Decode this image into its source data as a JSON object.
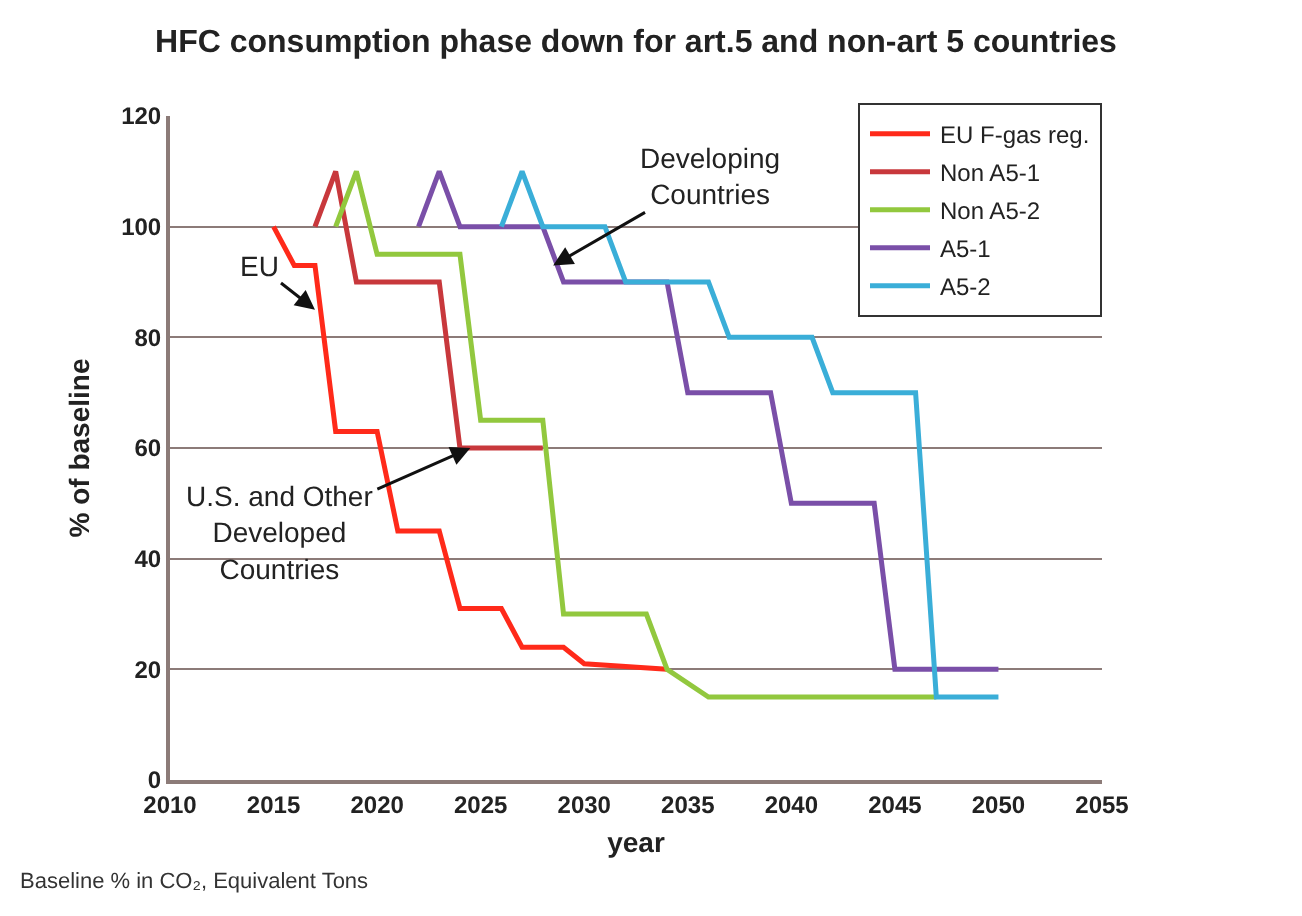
{
  "chart_data": {
    "type": "line",
    "title": "HFC consumption phase down for art.5 and non-art 5 countries",
    "xlabel": "year",
    "ylabel": "% of baseline",
    "xlim": [
      2010,
      2055
    ],
    "xticks": [
      2010,
      2015,
      2020,
      2025,
      2030,
      2035,
      2040,
      2045,
      2050,
      2055
    ],
    "ylim": [
      0,
      120
    ],
    "yticks": [
      0,
      20,
      40,
      60,
      80,
      100,
      120
    ],
    "grid": "y",
    "legend": "top right",
    "marker": "none",
    "line_style": "solid",
    "series": [
      {
        "name": "EU F-gas reg.",
        "color": "#ff2a1a",
        "x": [
          2015,
          2016,
          2017,
          2018,
          2020,
          2021,
          2023,
          2024,
          2026,
          2027,
          2029,
          2030,
          2034
        ],
        "values": [
          100,
          93,
          93,
          63,
          63,
          45,
          45,
          31,
          31,
          24,
          24,
          21,
          20
        ]
      },
      {
        "name": "Non A5-1",
        "color": "#c8383c",
        "x": [
          2017,
          2018,
          2019,
          2023,
          2024,
          2028
        ],
        "values": [
          100,
          110,
          90,
          90,
          60,
          60
        ]
      },
      {
        "name": "Non A5-2",
        "color": "#92c83e",
        "x": [
          2018,
          2019,
          2020,
          2024,
          2025,
          2028,
          2029,
          2033,
          2034,
          2036,
          2047
        ],
        "values": [
          100,
          110,
          95,
          95,
          65,
          65,
          30,
          30,
          20,
          15,
          15
        ]
      },
      {
        "name": "A5-1",
        "color": "#7a4fa8",
        "x": [
          2022,
          2023,
          2024,
          2028,
          2029,
          2034,
          2035,
          2039,
          2040,
          2044,
          2045,
          2050
        ],
        "values": [
          100,
          110,
          100,
          100,
          90,
          90,
          70,
          70,
          50,
          50,
          20,
          20
        ]
      },
      {
        "name": "A5-2",
        "color": "#3aaed8",
        "x": [
          2026,
          2027,
          2028,
          2031,
          2032,
          2036,
          2037,
          2041,
          2042,
          2046,
          2047,
          2050
        ],
        "values": [
          100,
          110,
          100,
          100,
          90,
          90,
          80,
          80,
          70,
          70,
          15,
          15
        ]
      }
    ],
    "annotations": [
      {
        "text": "EU",
        "x": 2017,
        "y": 85
      },
      {
        "text": "U.S. and Other\nDeveloped\nCountries",
        "x": 2024.5,
        "y": 60
      },
      {
        "text": "Developing\nCountries",
        "x": 2028.5,
        "y": 93
      },
      "Baseline % in CO₂, Equivalent Tons"
    ]
  }
}
